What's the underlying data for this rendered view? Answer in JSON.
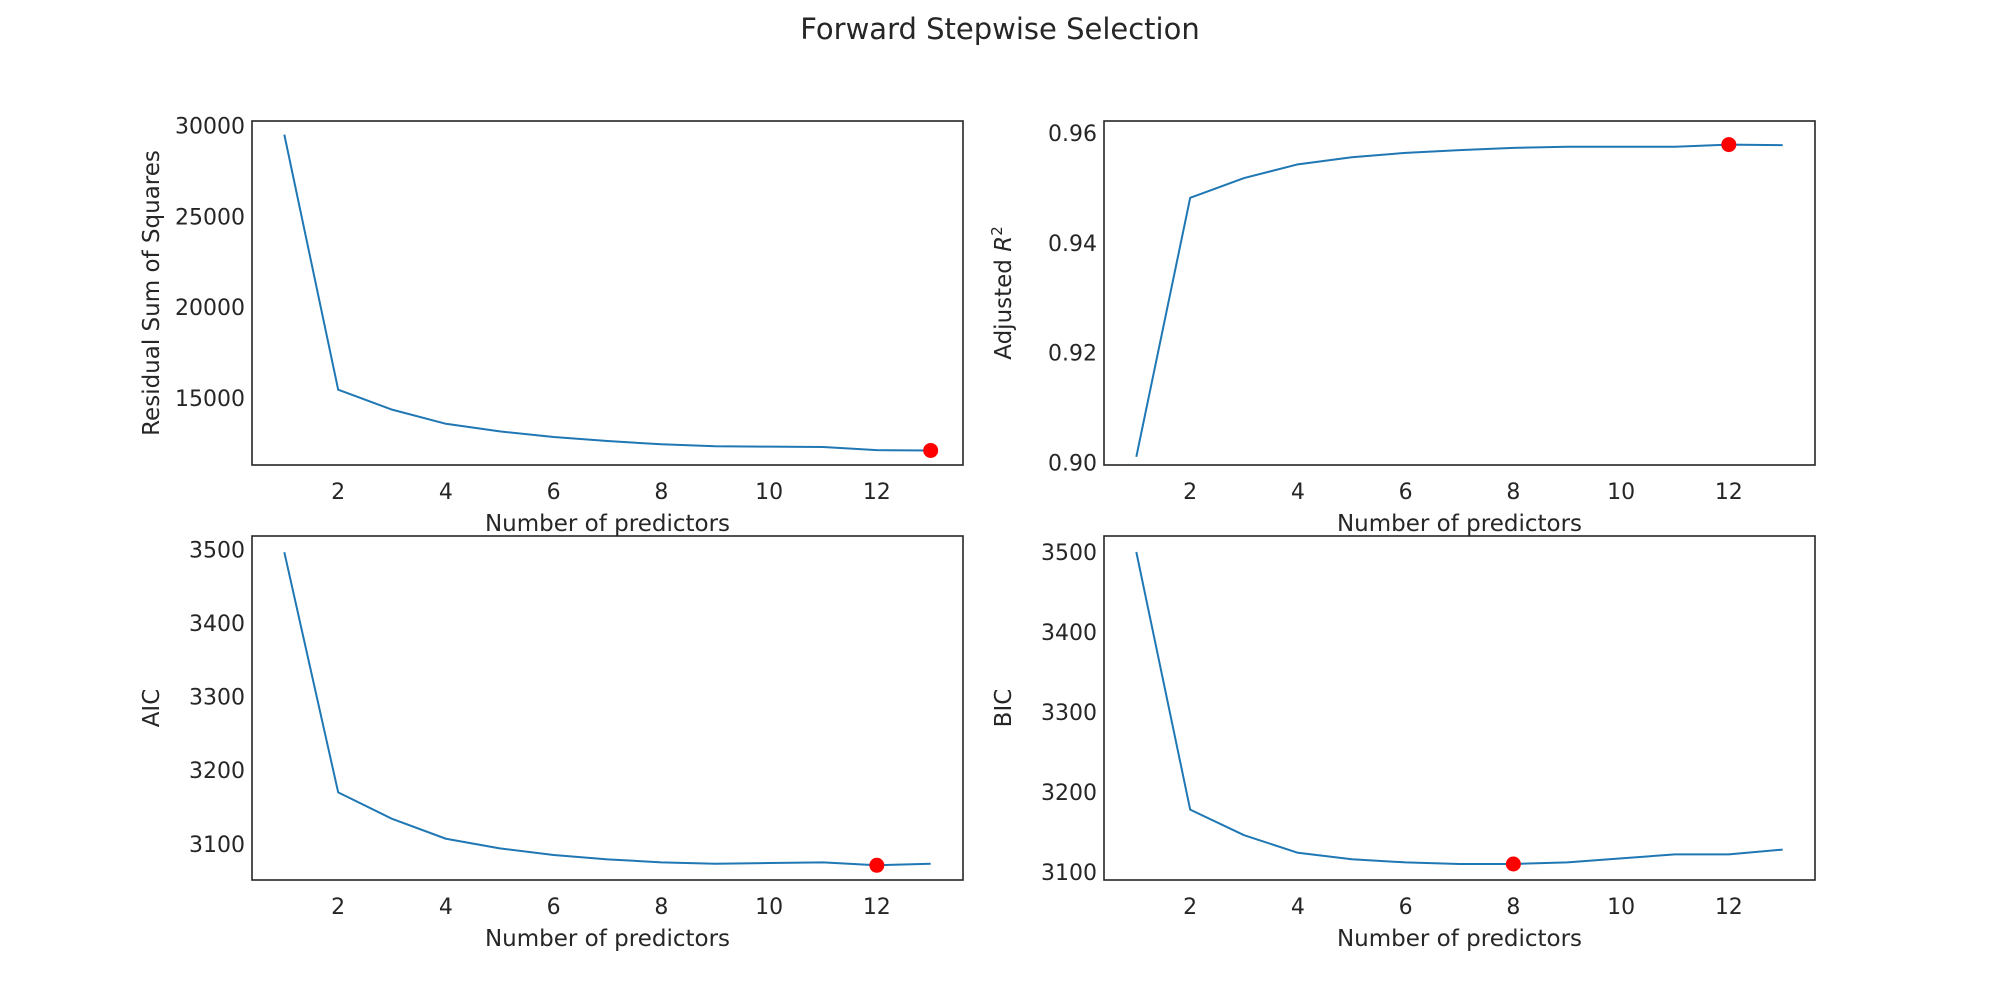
{
  "figure": {
    "title": "Forward Stepwise Selection"
  },
  "colors": {
    "line": "#1f77b4",
    "marker": "#ff0000",
    "axes": "#262626"
  },
  "chart_data": [
    {
      "type": "line",
      "id": "rss",
      "xlabel": "Number of predictors",
      "ylabel": "Residual Sum of Squares",
      "xlim": [
        0.4,
        13.6
      ],
      "ylim": [
        11300,
        30250
      ],
      "xticks": [
        2,
        4,
        6,
        8,
        10,
        12
      ],
      "yticks": [
        15000,
        20000,
        25000,
        30000
      ],
      "x": [
        1,
        2,
        3,
        4,
        5,
        6,
        7,
        8,
        9,
        10,
        11,
        12,
        13
      ],
      "y": [
        29500,
        15450,
        14350,
        13570,
        13150,
        12840,
        12620,
        12440,
        12330,
        12310,
        12290,
        12120,
        12100
      ],
      "highlight": {
        "x": 13,
        "y": 12100
      },
      "grid": false
    },
    {
      "type": "line",
      "id": "adjr2",
      "xlabel": "Number of predictors",
      "ylabel": "Adjusted R",
      "ylabel_sup": "2",
      "xlim": [
        0.4,
        13.6
      ],
      "ylim": [
        0.8995,
        0.9622
      ],
      "xticks": [
        2,
        4,
        6,
        8,
        10,
        12
      ],
      "yticks": [
        0.9,
        0.92,
        0.94,
        0.96
      ],
      "ytick_decimals": 2,
      "x": [
        1,
        2,
        3,
        4,
        5,
        6,
        7,
        8,
        9,
        10,
        11,
        12,
        13
      ],
      "y": [
        0.901,
        0.9482,
        0.9518,
        0.9543,
        0.9556,
        0.9564,
        0.9569,
        0.9573,
        0.9575,
        0.9575,
        0.9575,
        0.9579,
        0.9578
      ],
      "highlight": {
        "x": 12,
        "y": 0.9579
      },
      "grid": false
    },
    {
      "type": "line",
      "id": "aic",
      "xlabel": "Number of predictors",
      "ylabel": "AIC",
      "xlim": [
        0.4,
        13.6
      ],
      "ylim": [
        3051,
        3518
      ],
      "xticks": [
        2,
        4,
        6,
        8,
        10,
        12
      ],
      "yticks": [
        3100,
        3200,
        3300,
        3400,
        3500
      ],
      "x": [
        1,
        2,
        3,
        4,
        5,
        6,
        7,
        8,
        9,
        10,
        11,
        12,
        13
      ],
      "y": [
        3496,
        3170,
        3134,
        3107,
        3094,
        3085,
        3079,
        3075,
        3073,
        3074,
        3075,
        3071,
        3073
      ],
      "highlight": {
        "x": 12,
        "y": 3071
      },
      "grid": false
    },
    {
      "type": "line",
      "id": "bic",
      "xlabel": "Number of predictors",
      "ylabel": "BIC",
      "xlim": [
        0.4,
        13.6
      ],
      "ylim": [
        3090,
        3520
      ],
      "xticks": [
        2,
        4,
        6,
        8,
        10,
        12
      ],
      "yticks": [
        3100,
        3200,
        3300,
        3400,
        3500
      ],
      "x": [
        1,
        2,
        3,
        4,
        5,
        6,
        7,
        8,
        9,
        10,
        11,
        12,
        13
      ],
      "y": [
        3500,
        3178,
        3146,
        3124,
        3116,
        3112,
        3110,
        3110,
        3112,
        3117,
        3122,
        3122,
        3128
      ],
      "highlight": {
        "x": 8,
        "y": 3110
      },
      "grid": false
    }
  ]
}
